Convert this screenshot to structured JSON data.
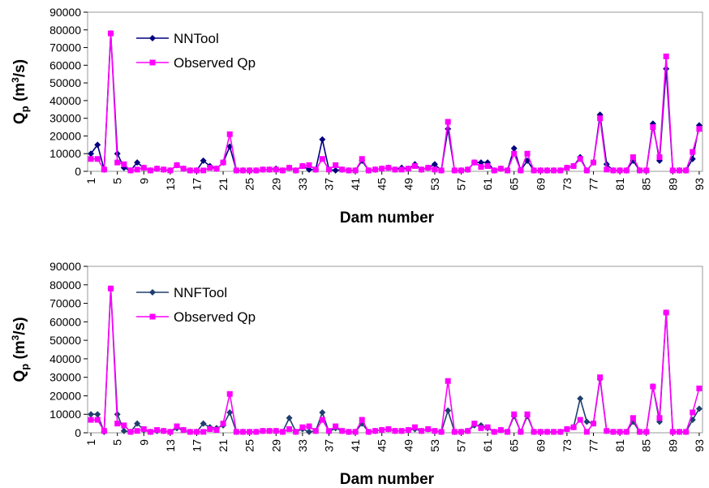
{
  "chart_data": [
    {
      "type": "line",
      "x_label": "Dam number",
      "y_label": {
        "main": "Q",
        "sub": "p",
        "unit": " (m",
        "sup": "3",
        "end": "/s)"
      },
      "x": [
        1,
        2,
        3,
        4,
        5,
        6,
        7,
        8,
        9,
        10,
        11,
        12,
        13,
        14,
        15,
        16,
        17,
        18,
        19,
        20,
        21,
        22,
        23,
        24,
        25,
        26,
        27,
        28,
        29,
        30,
        31,
        32,
        33,
        34,
        35,
        36,
        37,
        38,
        39,
        40,
        41,
        42,
        43,
        44,
        45,
        46,
        47,
        48,
        49,
        50,
        51,
        52,
        53,
        54,
        55,
        56,
        57,
        58,
        59,
        60,
        61,
        62,
        63,
        64,
        65,
        66,
        67,
        68,
        69,
        70,
        71,
        72,
        73,
        74,
        75,
        76,
        77,
        78,
        79,
        80,
        81,
        82,
        83,
        84,
        85,
        86,
        87,
        88,
        89,
        90,
        91,
        92,
        93
      ],
      "xlim": [
        0.5,
        93.5
      ],
      "xticks": [
        1,
        5,
        9,
        13,
        17,
        21,
        25,
        29,
        33,
        37,
        41,
        45,
        49,
        53,
        57,
        61,
        65,
        69,
        73,
        77,
        81,
        85,
        89,
        93
      ],
      "ylim": [
        0,
        90000
      ],
      "yticks": [
        0,
        10000,
        20000,
        30000,
        40000,
        50000,
        60000,
        70000,
        80000,
        90000
      ],
      "legend": "upper-left",
      "series": [
        {
          "name": "NNTool",
          "color": "#000080",
          "marker": "diamond",
          "values": [
            10000,
            15000,
            1000,
            78000,
            10000,
            2000,
            500,
            5000,
            2000,
            500,
            1500,
            1000,
            500,
            3500,
            1500,
            500,
            500,
            6000,
            3000,
            1500,
            5000,
            14000,
            500,
            500,
            500,
            500,
            1000,
            1000,
            1500,
            500,
            2000,
            500,
            3000,
            1000,
            1000,
            18000,
            1000,
            500,
            1000,
            500,
            500,
            6000,
            500,
            1000,
            1500,
            2000,
            1000,
            2000,
            1500,
            4000,
            1000,
            2000,
            4000,
            500,
            24000,
            500,
            500,
            1000,
            5000,
            5000,
            5000,
            500,
            1500,
            500,
            13000,
            500,
            6000,
            500,
            500,
            500,
            500,
            500,
            2000,
            3000,
            8000,
            500,
            5000,
            32000,
            4000,
            500,
            500,
            500,
            6000,
            500,
            500,
            27000,
            6000,
            58000,
            500,
            500,
            500,
            7000,
            26000
          ]
        },
        {
          "name": "Observed Qp",
          "color": "#ff00ff",
          "marker": "square",
          "values": [
            7000,
            7000,
            1000,
            78000,
            5000,
            4000,
            500,
            1000,
            2000,
            500,
            1500,
            1000,
            500,
            3500,
            1500,
            500,
            500,
            500,
            2000,
            1500,
            5000,
            21000,
            500,
            500,
            500,
            500,
            1000,
            1000,
            1000,
            500,
            2000,
            500,
            3000,
            3500,
            1000,
            7000,
            1000,
            3500,
            1000,
            500,
            500,
            7000,
            500,
            1000,
            1500,
            2000,
            1000,
            1000,
            1500,
            3000,
            1000,
            2000,
            1000,
            500,
            28000,
            500,
            500,
            1000,
            5000,
            2500,
            3000,
            500,
            1500,
            500,
            10000,
            500,
            10000,
            500,
            500,
            500,
            500,
            500,
            2000,
            3000,
            7000,
            500,
            5000,
            30000,
            1000,
            500,
            500,
            500,
            8000,
            500,
            500,
            25000,
            8000,
            65000,
            500,
            500,
            500,
            11000,
            24000
          ]
        }
      ]
    },
    {
      "type": "line",
      "x_label": "Dam number",
      "y_label": {
        "main": "Q",
        "sub": "p",
        "unit": " (m",
        "sup": "3",
        "end": "/s)"
      },
      "x": [
        1,
        2,
        3,
        4,
        5,
        6,
        7,
        8,
        9,
        10,
        11,
        12,
        13,
        14,
        15,
        16,
        17,
        18,
        19,
        20,
        21,
        22,
        23,
        24,
        25,
        26,
        27,
        28,
        29,
        30,
        31,
        32,
        33,
        34,
        35,
        36,
        37,
        38,
        39,
        40,
        41,
        42,
        43,
        44,
        45,
        46,
        47,
        48,
        49,
        50,
        51,
        52,
        53,
        54,
        55,
        56,
        57,
        58,
        59,
        60,
        61,
        62,
        63,
        64,
        65,
        66,
        67,
        68,
        69,
        70,
        71,
        72,
        73,
        74,
        75,
        76,
        77,
        78,
        79,
        80,
        81,
        82,
        83,
        84,
        85,
        86,
        87,
        88,
        89,
        90,
        91,
        92,
        93
      ],
      "xlim": [
        0.5,
        93.5
      ],
      "xticks": [
        1,
        5,
        9,
        13,
        17,
        21,
        25,
        29,
        33,
        37,
        41,
        45,
        49,
        53,
        57,
        61,
        65,
        69,
        73,
        77,
        81,
        85,
        89,
        93
      ],
      "ylim": [
        0,
        90000
      ],
      "yticks": [
        0,
        10000,
        20000,
        30000,
        40000,
        50000,
        60000,
        70000,
        80000,
        90000
      ],
      "legend": "upper-left",
      "series": [
        {
          "name": "NNFTool",
          "color": "#1f3f6e",
          "marker": "diamond",
          "values": [
            10000,
            10000,
            500,
            78000,
            10000,
            1000,
            500,
            5000,
            1500,
            500,
            1000,
            1000,
            500,
            2500,
            1500,
            500,
            500,
            5000,
            3000,
            2500,
            4000,
            11000,
            500,
            500,
            500,
            500,
            1000,
            1000,
            1000,
            500,
            8000,
            500,
            2000,
            500,
            1000,
            11000,
            500,
            2500,
            1000,
            500,
            500,
            5000,
            500,
            1000,
            1500,
            2000,
            1000,
            1000,
            1500,
            2000,
            1000,
            2000,
            1000,
            500,
            12000,
            500,
            500,
            1000,
            4000,
            4000,
            2500,
            500,
            1500,
            500,
            9000,
            500,
            9000,
            500,
            500,
            500,
            500,
            500,
            2000,
            3000,
            18500,
            6000,
            5000,
            29000,
            1000,
            500,
            500,
            500,
            6000,
            500,
            500,
            25000,
            6000,
            65000,
            500,
            500,
            500,
            7000,
            13000
          ]
        },
        {
          "name": "Observed Qp",
          "color": "#ff00ff",
          "marker": "square",
          "values": [
            7000,
            7000,
            1000,
            78000,
            5000,
            4000,
            500,
            1000,
            2000,
            500,
            1500,
            1000,
            500,
            3500,
            1500,
            500,
            500,
            500,
            2000,
            1500,
            5000,
            21000,
            500,
            500,
            500,
            500,
            1000,
            1000,
            1000,
            500,
            2000,
            500,
            3000,
            3500,
            1000,
            7000,
            1000,
            3500,
            1000,
            500,
            500,
            7000,
            500,
            1000,
            1500,
            2000,
            1000,
            1000,
            1500,
            3000,
            1000,
            2000,
            1000,
            500,
            28000,
            500,
            500,
            1000,
            5000,
            2500,
            3000,
            500,
            1500,
            500,
            10000,
            500,
            10000,
            500,
            500,
            500,
            500,
            500,
            2000,
            3000,
            7000,
            500,
            5000,
            30000,
            1000,
            500,
            500,
            500,
            8000,
            500,
            500,
            25000,
            8000,
            65000,
            500,
            500,
            500,
            11000,
            24000
          ]
        }
      ]
    }
  ]
}
